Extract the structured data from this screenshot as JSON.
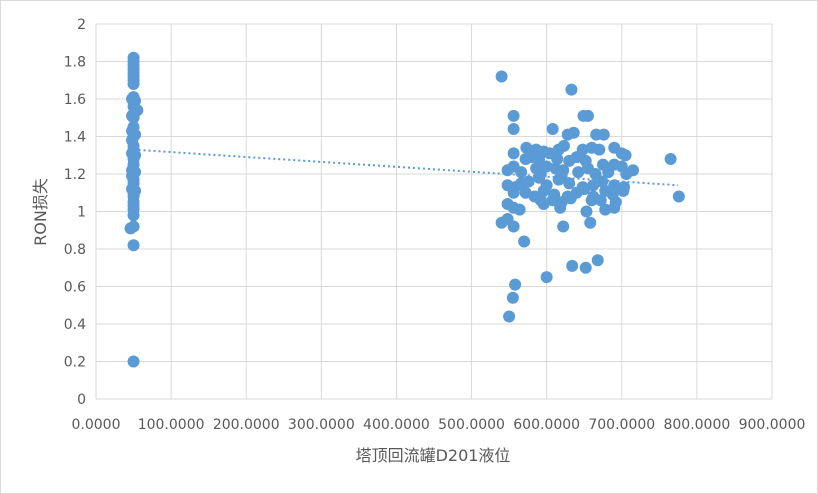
{
  "chart_data": {
    "type": "scatter",
    "title": "",
    "xlabel": "塔顶回流罐D201液位",
    "ylabel": "RON损失",
    "xlim": [
      0,
      900
    ],
    "ylim": [
      0,
      2
    ],
    "x_ticks": [
      "0.0000",
      "100.0000",
      "200.0000",
      "300.0000",
      "400.0000",
      "500.0000",
      "600.0000",
      "700.0000",
      "800.0000",
      "900.0000"
    ],
    "y_ticks": [
      "0",
      "0.2",
      "0.4",
      "0.6",
      "0.8",
      "1",
      "1.2",
      "1.4",
      "1.6",
      "1.8",
      "2"
    ],
    "grid": true,
    "marker_color": "#5b9bd5",
    "trendline": {
      "type": "linear",
      "style": "dotted",
      "color": "#5b9bd5",
      "x": [
        50,
        775
      ],
      "y": [
        1.33,
        1.14
      ]
    },
    "series": [
      {
        "points": [
          [
            50,
            1.82
          ],
          [
            50,
            1.8
          ],
          [
            50,
            1.78
          ],
          [
            50,
            1.76
          ],
          [
            50,
            1.74
          ],
          [
            50,
            1.72
          ],
          [
            50,
            1.7
          ],
          [
            50,
            1.68
          ],
          [
            50,
            1.61
          ],
          [
            48,
            1.6
          ],
          [
            52,
            1.59
          ],
          [
            50,
            1.56
          ],
          [
            55,
            1.54
          ],
          [
            50,
            1.52
          ],
          [
            48,
            1.51
          ],
          [
            50,
            1.5
          ],
          [
            50,
            1.45
          ],
          [
            48,
            1.43
          ],
          [
            52,
            1.41
          ],
          [
            50,
            1.4
          ],
          [
            48,
            1.38
          ],
          [
            50,
            1.35
          ],
          [
            50,
            1.33
          ],
          [
            48,
            1.31
          ],
          [
            52,
            1.3
          ],
          [
            50,
            1.28
          ],
          [
            50,
            1.25
          ],
          [
            48,
            1.22
          ],
          [
            52,
            1.21
          ],
          [
            50,
            1.2
          ],
          [
            48,
            1.19
          ],
          [
            50,
            1.17
          ],
          [
            50,
            1.15
          ],
          [
            48,
            1.12
          ],
          [
            52,
            1.11
          ],
          [
            50,
            1.1
          ],
          [
            50,
            1.08
          ],
          [
            50,
            1.05
          ],
          [
            50,
            1.03
          ],
          [
            50,
            1.01
          ],
          [
            50,
            0.98
          ],
          [
            50,
            0.92
          ],
          [
            46,
            0.91
          ],
          [
            50,
            0.82
          ],
          [
            50,
            0.2
          ],
          [
            540,
            1.72
          ],
          [
            633,
            1.65
          ],
          [
            556,
            1.51
          ],
          [
            649,
            1.51
          ],
          [
            655,
            1.51
          ],
          [
            556,
            1.44
          ],
          [
            608,
            1.44
          ],
          [
            628,
            1.41
          ],
          [
            636,
            1.42
          ],
          [
            666,
            1.41
          ],
          [
            676,
            1.41
          ],
          [
            616,
            1.33
          ],
          [
            648,
            1.33
          ],
          [
            660,
            1.34
          ],
          [
            690,
            1.34
          ],
          [
            573,
            1.34
          ],
          [
            586,
            1.33
          ],
          [
            596,
            1.32
          ],
          [
            604,
            1.31
          ],
          [
            623,
            1.35
          ],
          [
            670,
            1.33
          ],
          [
            700,
            1.31
          ],
          [
            705,
            1.3
          ],
          [
            556,
            1.31
          ],
          [
            572,
            1.28
          ],
          [
            580,
            1.29
          ],
          [
            590,
            1.28
          ],
          [
            614,
            1.28
          ],
          [
            630,
            1.27
          ],
          [
            640,
            1.29
          ],
          [
            652,
            1.27
          ],
          [
            675,
            1.25
          ],
          [
            690,
            1.25
          ],
          [
            700,
            1.24
          ],
          [
            765,
            1.28
          ],
          [
            548,
            1.22
          ],
          [
            556,
            1.24
          ],
          [
            566,
            1.21
          ],
          [
            586,
            1.23
          ],
          [
            592,
            1.2
          ],
          [
            600,
            1.24
          ],
          [
            612,
            1.23
          ],
          [
            622,
            1.22
          ],
          [
            642,
            1.21
          ],
          [
            655,
            1.23
          ],
          [
            665,
            1.2
          ],
          [
            682,
            1.21
          ],
          [
            706,
            1.2
          ],
          [
            715,
            1.22
          ],
          [
            548,
            1.14
          ],
          [
            558,
            1.13
          ],
          [
            566,
            1.15
          ],
          [
            576,
            1.16
          ],
          [
            590,
            1.18
          ],
          [
            600,
            1.14
          ],
          [
            616,
            1.17
          ],
          [
            620,
            1.19
          ],
          [
            630,
            1.15
          ],
          [
            648,
            1.13
          ],
          [
            662,
            1.14
          ],
          [
            674,
            1.16
          ],
          [
            690,
            1.14
          ],
          [
            703,
            1.13
          ],
          [
            556,
            1.1
          ],
          [
            572,
            1.1
          ],
          [
            584,
            1.08
          ],
          [
            596,
            1.11
          ],
          [
            610,
            1.09
          ],
          [
            628,
            1.08
          ],
          [
            640,
            1.1
          ],
          [
            650,
            1.12
          ],
          [
            662,
            1.08
          ],
          [
            678,
            1.11
          ],
          [
            688,
            1.09
          ],
          [
            702,
            1.11
          ],
          [
            592,
            1.06
          ],
          [
            608,
            1.06
          ],
          [
            620,
            1.05
          ],
          [
            632,
            1.07
          ],
          [
            660,
            1.06
          ],
          [
            672,
            1.06
          ],
          [
            692,
            1.05
          ],
          [
            548,
            1.04
          ],
          [
            556,
            1.02
          ],
          [
            564,
            1.01
          ],
          [
            596,
            1.04
          ],
          [
            618,
            1.02
          ],
          [
            653,
            1.0
          ],
          [
            678,
            1.01
          ],
          [
            690,
            1.02
          ],
          [
            548,
            0.96
          ],
          [
            540,
            0.94
          ],
          [
            556,
            0.92
          ],
          [
            658,
            0.94
          ],
          [
            622,
            0.92
          ],
          [
            570,
            0.84
          ],
          [
            634,
            0.71
          ],
          [
            652,
            0.7
          ],
          [
            668,
            0.74
          ],
          [
            600,
            0.65
          ],
          [
            558,
            0.61
          ],
          [
            555,
            0.54
          ],
          [
            550,
            0.44
          ],
          [
            776,
            1.08
          ]
        ]
      }
    ]
  }
}
